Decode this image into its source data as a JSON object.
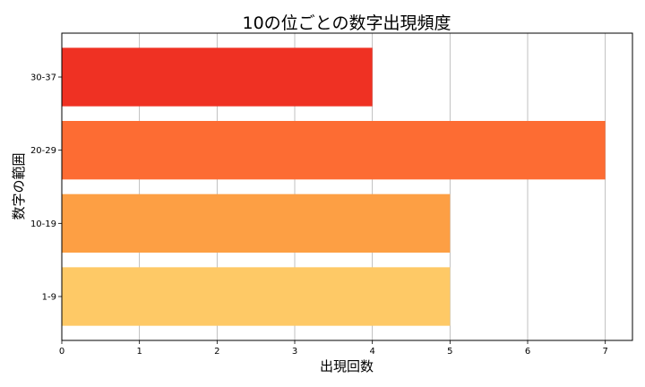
{
  "chart_data": {
    "type": "bar",
    "orientation": "horizontal",
    "title": "10の位ごとの数字出現頻度",
    "xlabel": "出現回数",
    "ylabel": "数字の範囲",
    "categories": [
      "1-9",
      "10-19",
      "20-29",
      "30-37"
    ],
    "values": [
      5,
      5,
      7,
      4
    ],
    "colors": [
      "#fec966",
      "#fd9f44",
      "#fd6c33",
      "#ef3123"
    ],
    "xlim": [
      0,
      7.35
    ],
    "xticks": [
      0,
      1,
      2,
      3,
      4,
      5,
      6,
      7
    ],
    "grid": true
  }
}
